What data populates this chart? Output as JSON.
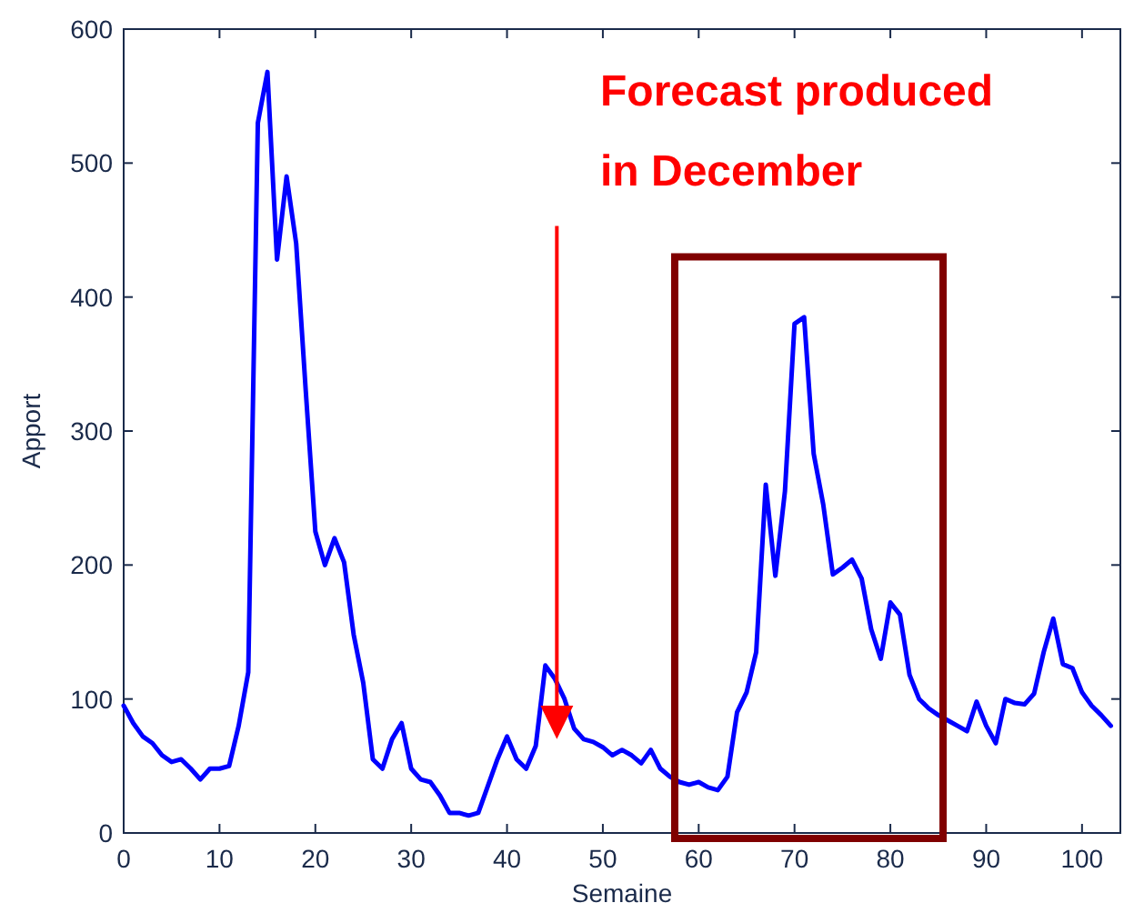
{
  "chart_data": {
    "type": "line",
    "xlabel": "Semaine",
    "ylabel": "Apport",
    "x": [
      0,
      1,
      2,
      3,
      4,
      5,
      6,
      7,
      8,
      9,
      10,
      11,
      12,
      13,
      14,
      15,
      16,
      17,
      18,
      19,
      20,
      21,
      22,
      23,
      24,
      25,
      26,
      27,
      28,
      29,
      30,
      31,
      32,
      33,
      34,
      35,
      36,
      37,
      38,
      39,
      40,
      41,
      42,
      43,
      44,
      45,
      46,
      47,
      48,
      49,
      50,
      51,
      52,
      53,
      54,
      55,
      56,
      57,
      58,
      59,
      60,
      61,
      62,
      63,
      64,
      65,
      66,
      67,
      68,
      69,
      70,
      71,
      72,
      73,
      74,
      75,
      76,
      77,
      78,
      79,
      80,
      81,
      82,
      83,
      84,
      85,
      86,
      87,
      88,
      89,
      90,
      91,
      92,
      93,
      94,
      95,
      96,
      97,
      98,
      99,
      100,
      101,
      102,
      103
    ],
    "series": [
      {
        "color": "#0000ff",
        "values": [
          95,
          82,
          72,
          67,
          58,
          53,
          55,
          48,
          40,
          48,
          48,
          50,
          80,
          120,
          530,
          568,
          428,
          490,
          440,
          330,
          225,
          200,
          220,
          202,
          148,
          112,
          55,
          48,
          70,
          82,
          48,
          40,
          38,
          28,
          15,
          15,
          13,
          15,
          35,
          55,
          72,
          55,
          48,
          65,
          125,
          115,
          100,
          78,
          70,
          68,
          64,
          58,
          62,
          58,
          52,
          62,
          48,
          42,
          38,
          36,
          38,
          34,
          32,
          42,
          90,
          105,
          135,
          260,
          192,
          255,
          380,
          385,
          283,
          245,
          193,
          198,
          204,
          190,
          152,
          130,
          172,
          163,
          118,
          100,
          93,
          88,
          84,
          80,
          76,
          98,
          80,
          67,
          100,
          97,
          96,
          104,
          135,
          160,
          126,
          123,
          105,
          95,
          88,
          80
        ]
      }
    ],
    "xlim": [
      0,
      104
    ],
    "xticks": [
      0,
      10,
      20,
      30,
      40,
      50,
      60,
      70,
      80,
      90,
      100
    ],
    "ylim": [
      0,
      600
    ],
    "yticks": [
      0,
      100,
      200,
      300,
      400,
      500,
      600
    ],
    "grid": false,
    "marker": "none",
    "line_style": "solid",
    "annotations": [
      "Forecast produced",
      "in December"
    ]
  }
}
